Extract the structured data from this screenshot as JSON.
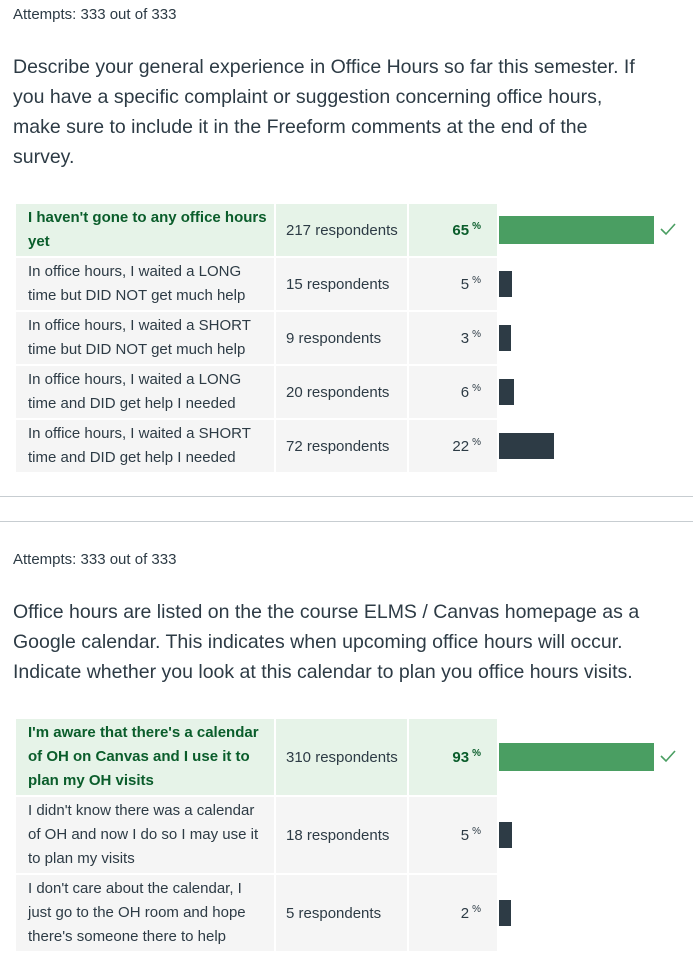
{
  "questions": [
    {
      "attempts": "Attempts: 333 out of 333",
      "text": "Describe your general experience in Office Hours so far this semester. If you have a specific complaint or suggestion concerning office hours, make sure to include it in the Freeform comments at the end of the survey.",
      "answers": [
        {
          "label": "I haven't gone to any office hours yet",
          "respondents": "217 respondents",
          "percent": "65",
          "pct_symbol": "%",
          "correct": true
        },
        {
          "label": "In office hours, I waited a LONG time but DID NOT get much help",
          "respondents": "15 respondents",
          "percent": "5",
          "pct_symbol": "%",
          "correct": false
        },
        {
          "label": "In office hours, I waited a SHORT time but DID NOT get much help",
          "respondents": "9 respondents",
          "percent": "3",
          "pct_symbol": "%",
          "correct": false
        },
        {
          "label": "In office hours, I waited a LONG time and DID get help I needed",
          "respondents": "20 respondents",
          "percent": "6",
          "pct_symbol": "%",
          "correct": false
        },
        {
          "label": "In office hours, I waited a SHORT time and DID get help I needed",
          "respondents": "72 respondents",
          "percent": "22",
          "pct_symbol": "%",
          "correct": false
        }
      ]
    },
    {
      "attempts": "Attempts: 333 out of 333",
      "text": "Office hours are listed on the the course ELMS / Canvas homepage as a Google calendar. This indicates when upcoming office hours will occur.  Indicate whether you look at this calendar to plan you office hours visits.",
      "answers": [
        {
          "label": "I'm aware that there's a calendar of OH on Canvas and I use it to plan my OH visits",
          "respondents": "310 respondents",
          "percent": "93",
          "pct_symbol": "%",
          "correct": true
        },
        {
          "label": "I didn't know there was a calendar of OH and now I do so I may use it to plan my visits",
          "respondents": "18 respondents",
          "percent": "5",
          "pct_symbol": "%",
          "correct": false
        },
        {
          "label": "I don't care about the calendar, I just go to the OH room and hope there's someone there to help",
          "respondents": "5 respondents",
          "percent": "2",
          "pct_symbol": "%",
          "correct": false
        }
      ]
    }
  ],
  "colors": {
    "correct_bar": "#4a9e62",
    "bar": "#2d3b45",
    "correct_bg": "#e6f3e8",
    "cell_bg": "#f5f5f5"
  },
  "icons": {
    "correct_marker": "checkmark-icon"
  }
}
